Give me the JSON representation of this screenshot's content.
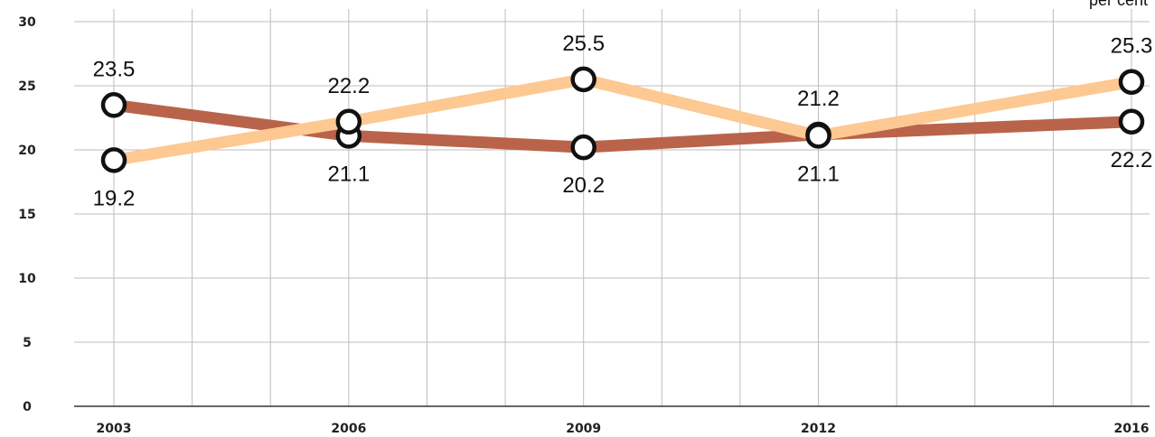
{
  "chart_data": {
    "type": "line",
    "x": [
      "2003",
      "2006",
      "2009",
      "2012",
      "2016"
    ],
    "ylim": [
      0,
      30
    ],
    "yticks": [
      "0",
      "5",
      "10",
      "15",
      "20",
      "25",
      "30"
    ],
    "xticks": [
      "2003",
      "2006",
      "2009",
      "2012",
      "2016"
    ],
    "unit_label": "per cent",
    "grid": true,
    "series": [
      {
        "values": [
          23.5,
          21.1,
          20.2,
          21.2,
          22.2
        ],
        "labels": [
          "23.5",
          "21.1",
          "20.2",
          "21.2",
          "22.2"
        ],
        "color": "#b9644a",
        "label_positions": [
          "above",
          "below",
          "below",
          "above",
          "below"
        ]
      },
      {
        "values": [
          19.2,
          22.2,
          25.5,
          21.1,
          25.3
        ],
        "labels": [
          "19.2",
          "22.2",
          "25.5",
          "21.1",
          "25.3"
        ],
        "color": "#fdc891",
        "label_positions": [
          "below",
          "above",
          "above",
          "below",
          "above"
        ]
      }
    ]
  }
}
